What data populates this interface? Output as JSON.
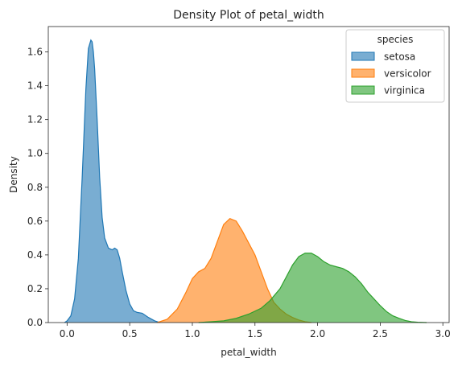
{
  "chart_data": {
    "type": "area",
    "title": "Density Plot of petal_width",
    "xlabel": "petal_width",
    "ylabel": "Density",
    "xlim": [
      -0.15,
      3.05
    ],
    "ylim": [
      0,
      1.75
    ],
    "xticks": [
      "0.0",
      "0.5",
      "1.0",
      "1.5",
      "2.0",
      "2.5",
      "3.0"
    ],
    "xtick_values": [
      0,
      0.5,
      1.0,
      1.5,
      2.0,
      2.5,
      3.0
    ],
    "yticks": [
      "0.0",
      "0.2",
      "0.4",
      "0.6",
      "0.8",
      "1.0",
      "1.2",
      "1.4",
      "1.6"
    ],
    "ytick_values": [
      0,
      0.2,
      0.4,
      0.6,
      0.8,
      1.0,
      1.2,
      1.4,
      1.6
    ],
    "grid": false,
    "legend": {
      "title": "species",
      "placement": "top-right"
    },
    "series": [
      {
        "name": "setosa",
        "color": "#1f77b4",
        "x": [
          -0.02,
          0.0,
          0.03,
          0.06,
          0.09,
          0.12,
          0.15,
          0.17,
          0.19,
          0.2,
          0.21,
          0.22,
          0.24,
          0.26,
          0.28,
          0.3,
          0.33,
          0.36,
          0.38,
          0.4,
          0.42,
          0.44,
          0.47,
          0.5,
          0.53,
          0.56,
          0.6,
          0.65,
          0.7,
          0.74
        ],
        "y": [
          0.0,
          0.01,
          0.04,
          0.14,
          0.38,
          0.85,
          1.38,
          1.62,
          1.67,
          1.66,
          1.6,
          1.5,
          1.2,
          0.86,
          0.62,
          0.5,
          0.44,
          0.43,
          0.44,
          0.43,
          0.38,
          0.3,
          0.19,
          0.11,
          0.07,
          0.06,
          0.055,
          0.03,
          0.01,
          0.0
        ]
      },
      {
        "name": "versicolor",
        "color": "#ff7f0e",
        "x": [
          0.72,
          0.8,
          0.88,
          0.95,
          1.0,
          1.05,
          1.1,
          1.15,
          1.2,
          1.25,
          1.3,
          1.35,
          1.4,
          1.45,
          1.5,
          1.55,
          1.6,
          1.65,
          1.7,
          1.75,
          1.8,
          1.85,
          1.9,
          1.95
        ],
        "y": [
          0.0,
          0.02,
          0.08,
          0.18,
          0.26,
          0.3,
          0.32,
          0.38,
          0.48,
          0.58,
          0.615,
          0.6,
          0.54,
          0.47,
          0.4,
          0.3,
          0.2,
          0.12,
          0.08,
          0.05,
          0.03,
          0.015,
          0.005,
          0.0
        ]
      },
      {
        "name": "virginica",
        "color": "#2ca02c",
        "x": [
          1.05,
          1.15,
          1.25,
          1.35,
          1.45,
          1.55,
          1.62,
          1.7,
          1.75,
          1.8,
          1.85,
          1.9,
          1.95,
          2.0,
          2.05,
          2.1,
          2.15,
          2.2,
          2.25,
          2.3,
          2.35,
          2.4,
          2.45,
          2.5,
          2.55,
          2.6,
          2.65,
          2.7,
          2.75,
          2.8,
          2.87
        ],
        "y": [
          0.0,
          0.005,
          0.01,
          0.025,
          0.05,
          0.085,
          0.13,
          0.2,
          0.27,
          0.34,
          0.39,
          0.41,
          0.41,
          0.39,
          0.36,
          0.34,
          0.33,
          0.32,
          0.3,
          0.27,
          0.23,
          0.18,
          0.14,
          0.1,
          0.065,
          0.04,
          0.025,
          0.012,
          0.005,
          0.002,
          0.0
        ]
      }
    ]
  }
}
